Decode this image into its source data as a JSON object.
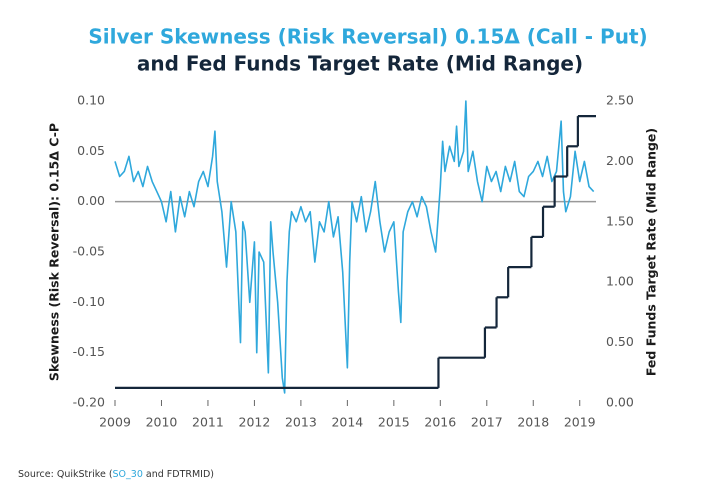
{
  "chart_data": {
    "type": "line",
    "title": "Silver Skewness (Risk Reversal) 0.15Δ (Call - Put)",
    "subtitle": "and Fed Funds Target Rate (Mid Range)",
    "y_label": "Skewness (Risk Reversal): 0.15Δ C-P",
    "y2_label": "Fed Funds Target Rate (Mid Range)",
    "source_prefix": "Source: QuikStrike (",
    "source_link": "SO_30",
    "source_suffix": " and FDTRMID)",
    "xlim": [
      2009,
      2019.35
    ],
    "xticks": [
      2009,
      2010,
      2011,
      2012,
      2013,
      2014,
      2015,
      2016,
      2017,
      2018,
      2019
    ],
    "ylim": [
      -0.2,
      0.1
    ],
    "yticks": [
      {
        "value": -0.2,
        "label": "-0.20"
      },
      {
        "value": -0.15,
        "label": "-0.15"
      },
      {
        "value": -0.1,
        "label": "-0.10"
      },
      {
        "value": -0.05,
        "label": "-0.05"
      },
      {
        "value": 0,
        "label": "0.00"
      },
      {
        "value": 0.05,
        "label": "0.05"
      },
      {
        "value": 0.1,
        "label": "0.10"
      }
    ],
    "y2lim": [
      0,
      2.5
    ],
    "y2ticks": [
      {
        "value": 0,
        "label": "0.00"
      },
      {
        "value": 0.5,
        "label": "0.50"
      },
      {
        "value": 1,
        "label": "1.00"
      },
      {
        "value": 1.5,
        "label": "1.50"
      },
      {
        "value": 2,
        "label": "2.00"
      },
      {
        "value": 2.5,
        "label": "2.50"
      }
    ],
    "zero_line": true,
    "series": [
      {
        "color": "#2fa8dc",
        "axis": "y",
        "x": [
          2009.0,
          2009.1,
          2009.2,
          2009.3,
          2009.4,
          2009.5,
          2009.6,
          2009.7,
          2009.8,
          2009.9,
          2010.0,
          2010.1,
          2010.2,
          2010.3,
          2010.4,
          2010.5,
          2010.6,
          2010.7,
          2010.8,
          2010.9,
          2011.0,
          2011.1,
          2011.15,
          2011.2,
          2011.3,
          2011.4,
          2011.5,
          2011.6,
          2011.7,
          2011.75,
          2011.8,
          2011.9,
          2012.0,
          2012.05,
          2012.1,
          2012.2,
          2012.3,
          2012.35,
          2012.4,
          2012.5,
          2012.6,
          2012.65,
          2012.7,
          2012.75,
          2012.8,
          2012.9,
          2013.0,
          2013.1,
          2013.2,
          2013.3,
          2013.4,
          2013.5,
          2013.6,
          2013.7,
          2013.8,
          2013.9,
          2014.0,
          2014.05,
          2014.1,
          2014.2,
          2014.3,
          2014.4,
          2014.5,
          2014.6,
          2014.7,
          2014.8,
          2014.9,
          2015.0,
          2015.1,
          2015.15,
          2015.2,
          2015.3,
          2015.4,
          2015.5,
          2015.6,
          2015.7,
          2015.8,
          2015.9,
          2016.0,
          2016.05,
          2016.1,
          2016.2,
          2016.3,
          2016.35,
          2016.4,
          2016.5,
          2016.55,
          2016.6,
          2016.7,
          2016.8,
          2016.9,
          2017.0,
          2017.1,
          2017.2,
          2017.3,
          2017.4,
          2017.5,
          2017.6,
          2017.7,
          2017.8,
          2017.9,
          2018.0,
          2018.1,
          2018.2,
          2018.3,
          2018.4,
          2018.5,
          2018.6,
          2018.65,
          2018.7,
          2018.8,
          2018.9,
          2019.0,
          2019.1,
          2019.2,
          2019.3
        ],
        "values": [
          0.04,
          0.025,
          0.03,
          0.045,
          0.02,
          0.03,
          0.015,
          0.035,
          0.02,
          0.01,
          0.0,
          -0.02,
          0.01,
          -0.03,
          0.005,
          -0.015,
          0.01,
          -0.005,
          0.02,
          0.03,
          0.015,
          0.045,
          0.07,
          0.02,
          -0.01,
          -0.065,
          0.0,
          -0.03,
          -0.14,
          -0.02,
          -0.03,
          -0.1,
          -0.04,
          -0.15,
          -0.05,
          -0.06,
          -0.17,
          -0.02,
          -0.05,
          -0.1,
          -0.175,
          -0.19,
          -0.08,
          -0.03,
          -0.01,
          -0.02,
          -0.005,
          -0.02,
          -0.01,
          -0.06,
          -0.02,
          -0.03,
          0.0,
          -0.035,
          -0.015,
          -0.07,
          -0.165,
          -0.06,
          0.0,
          -0.02,
          0.005,
          -0.03,
          -0.01,
          0.02,
          -0.02,
          -0.05,
          -0.03,
          -0.02,
          -0.09,
          -0.12,
          -0.03,
          -0.01,
          0.0,
          -0.015,
          0.005,
          -0.005,
          -0.03,
          -0.05,
          0.015,
          0.06,
          0.03,
          0.055,
          0.04,
          0.075,
          0.035,
          0.05,
          0.1,
          0.03,
          0.05,
          0.02,
          0.0,
          0.035,
          0.02,
          0.03,
          0.01,
          0.035,
          0.02,
          0.04,
          0.01,
          0.005,
          0.025,
          0.03,
          0.04,
          0.025,
          0.045,
          0.02,
          0.03,
          0.08,
          0.01,
          -0.01,
          0.005,
          0.05,
          0.02,
          0.04,
          0.015,
          0.01
        ]
      },
      {
        "color": "#14263a",
        "axis": "y2",
        "step": "post",
        "x": [
          2009.0,
          2015.96,
          2016.96,
          2017.21,
          2017.46,
          2017.96,
          2018.21,
          2018.46,
          2018.73,
          2018.96,
          2019.35
        ],
        "values": [
          0.125,
          0.375,
          0.625,
          0.875,
          1.125,
          1.375,
          1.625,
          1.875,
          2.125,
          2.375,
          2.375
        ]
      }
    ]
  }
}
